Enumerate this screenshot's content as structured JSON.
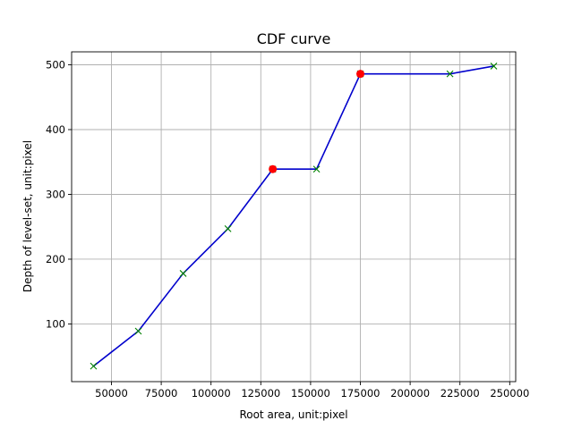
{
  "chart_data": {
    "type": "line",
    "title": "CDF curve",
    "xlabel": "Root area, unit:pixel",
    "ylabel": "Depth of level-set, unit:pixel",
    "xlim": [
      30000,
      253000
    ],
    "ylim": [
      11,
      520
    ],
    "xticks": [
      50000,
      75000,
      100000,
      125000,
      150000,
      175000,
      200000,
      225000,
      250000
    ],
    "yticks": [
      100,
      200,
      300,
      400,
      500
    ],
    "grid": true,
    "series": [
      {
        "x": [
          41000,
          63500,
          86000,
          108500,
          131000,
          153000,
          175000,
          220000,
          242000
        ],
        "y": [
          35,
          89,
          178,
          247,
          339,
          339,
          486,
          486,
          498
        ],
        "color": "#0000cc",
        "marker": "x",
        "marker_color": "#008000"
      }
    ],
    "highlight_points": {
      "x": [
        131000,
        175000
      ],
      "y": [
        339,
        486
      ],
      "color": "#ff0000",
      "marker": "circle"
    }
  }
}
